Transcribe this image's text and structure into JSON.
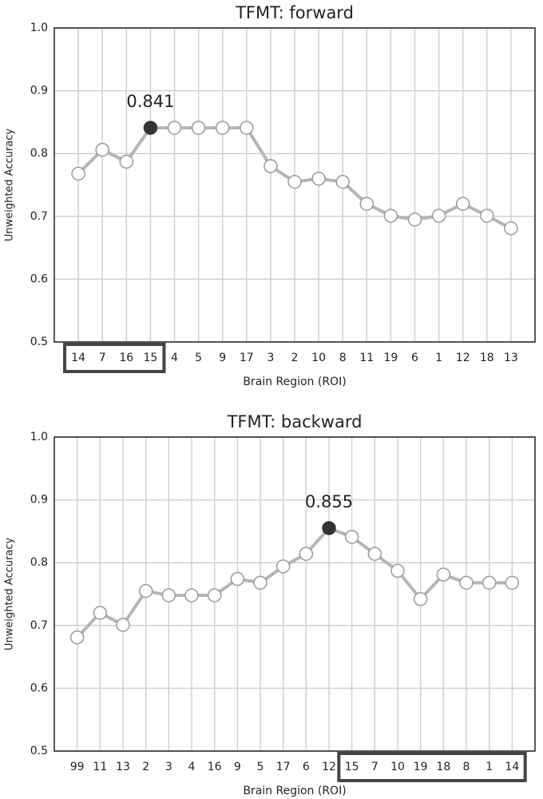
{
  "chart_data": [
    {
      "type": "line",
      "title": "TFMT: forward",
      "x_label": "Brain Region (ROI)",
      "y_label": "Unweighted Accuracy",
      "categories": [
        "14",
        "7",
        "16",
        "15",
        "4",
        "5",
        "9",
        "17",
        "3",
        "2",
        "10",
        "8",
        "11",
        "19",
        "6",
        "1",
        "12",
        "18",
        "13"
      ],
      "values": [
        0.768,
        0.806,
        0.787,
        0.841,
        0.841,
        0.841,
        0.841,
        0.841,
        0.78,
        0.755,
        0.76,
        0.755,
        0.72,
        0.701,
        0.695,
        0.701,
        0.72,
        0.701,
        0.681
      ],
      "color": "#b5b5b5",
      "highlight": 3,
      "highlight_color": "#333333",
      "annotation": "0.841",
      "boxed_categories": [
        0,
        3
      ],
      "ylim": [
        0.5,
        1.0
      ],
      "yticks": [
        0.5,
        0.6,
        0.7,
        0.8,
        0.9,
        {
          "value": 1,
          "label": "1.0"
        }
      ],
      "grid": true
    },
    {
      "type": "line",
      "title": "TFMT: backward",
      "x_label": "Brain Region (ROI)",
      "y_label": "Unweighted Accuracy",
      "categories": [
        "99",
        "11",
        "13",
        "2",
        "3",
        "4",
        "16",
        "9",
        "5",
        "17",
        "6",
        "12",
        "15",
        "7",
        "10",
        "19",
        "18",
        "8",
        "1",
        "14"
      ],
      "values": [
        0.681,
        0.72,
        0.701,
        0.755,
        0.748,
        0.748,
        0.748,
        0.774,
        0.768,
        0.794,
        0.814,
        0.855,
        0.841,
        0.814,
        0.787,
        0.742,
        0.781,
        0.768,
        0.768,
        0.768
      ],
      "color": "#b5b5b5",
      "highlight": 11,
      "highlight_color": "#333333",
      "annotation": "0.855",
      "boxed_categories": [
        12,
        19
      ],
      "ylim": [
        0.5,
        1.0
      ],
      "yticks": [
        0.5,
        0.6,
        0.7,
        0.8,
        0.9,
        {
          "value": 1,
          "label": "1.0"
        }
      ],
      "grid": true
    }
  ]
}
